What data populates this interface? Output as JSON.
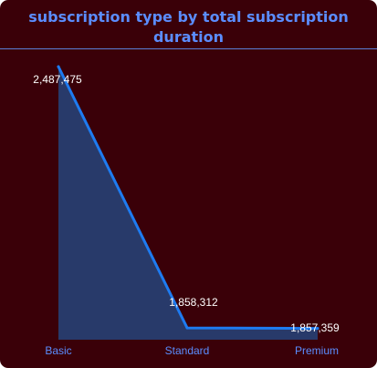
{
  "title": "subscription type by total subscription duration",
  "colors": {
    "background": "#3a0008",
    "title": "#5b8dff",
    "line": "#1e7bf0",
    "area": "#283a6a",
    "data_label": "#ffffff",
    "tick_label": "#5b8dff"
  },
  "chart_data": {
    "type": "area",
    "title": "subscription type by total subscription duration",
    "xlabel": "",
    "ylabel": "",
    "categories": [
      "Basic",
      "Standard",
      "Premium"
    ],
    "values": [
      2487475,
      1858312,
      1857359
    ],
    "data_labels": [
      "2,487,475",
      "1,858,312",
      "1,857,359"
    ],
    "ylim": [
      1830000,
      2487475
    ],
    "grid": false,
    "legend": "none"
  }
}
